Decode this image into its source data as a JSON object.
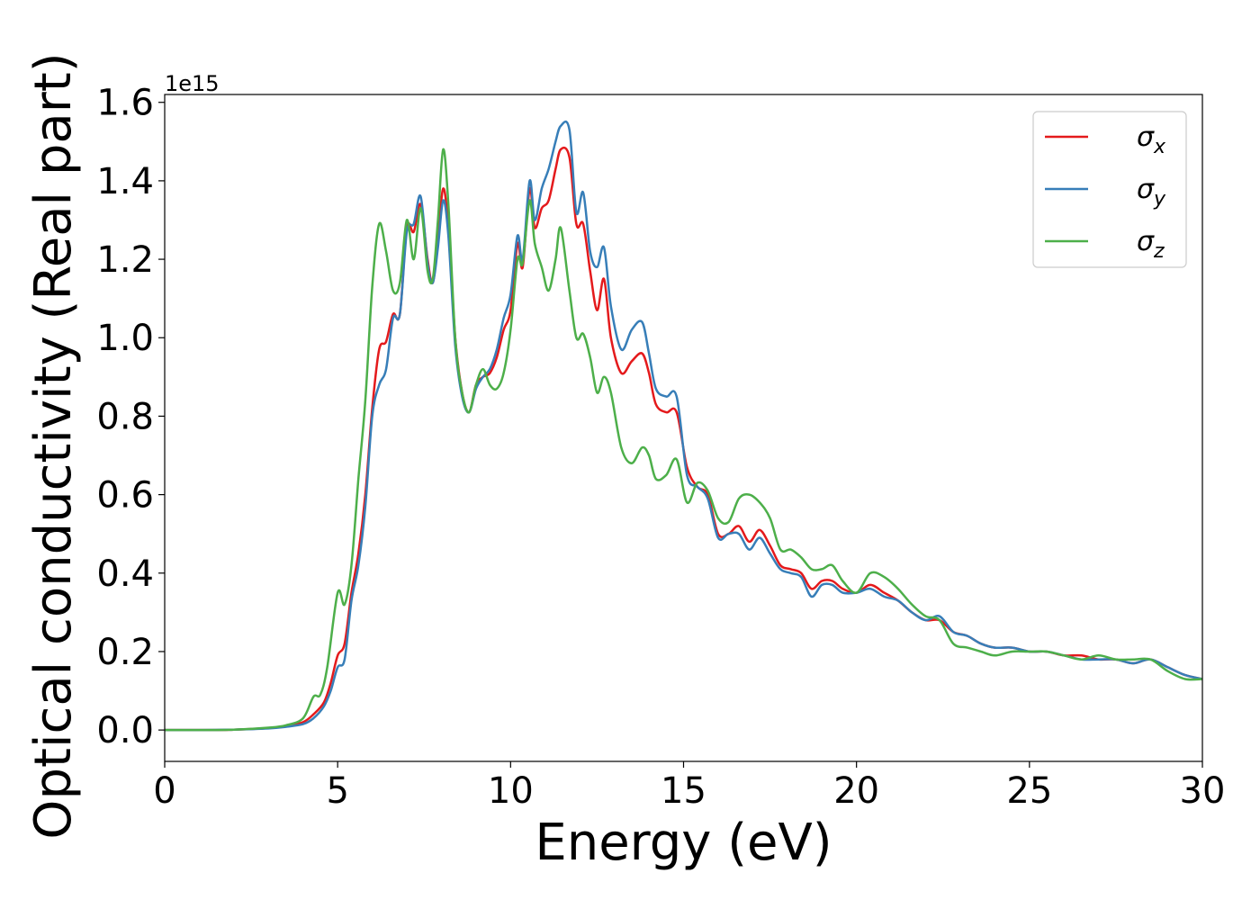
{
  "chart_data": {
    "type": "line",
    "xlabel": "Energy (eV)",
    "ylabel": "Optical conductivity (Real part)",
    "y_offset_label": "1e15",
    "xlim": [
      0,
      30
    ],
    "ylim": [
      -0.08,
      1.62
    ],
    "x_ticks": [
      0,
      5,
      10,
      15,
      20,
      25,
      30
    ],
    "x_tick_labels": [
      "0",
      "5",
      "10",
      "15",
      "20",
      "25",
      "30"
    ],
    "y_ticks": [
      0.0,
      0.2,
      0.4,
      0.6,
      0.8,
      1.0,
      1.2,
      1.4,
      1.6
    ],
    "y_tick_labels": [
      "0.0",
      "0.2",
      "0.4",
      "0.6",
      "0.8",
      "1.0",
      "1.2",
      "1.4",
      "1.6"
    ],
    "grid": false,
    "legend_position": "top-right",
    "series": [
      {
        "name": "σx",
        "label_base": "σ",
        "label_sub": "x",
        "color": "#e41a1c",
        "points": [
          [
            0,
            0.0
          ],
          [
            1,
            0.0
          ],
          [
            2,
            0.001
          ],
          [
            3,
            0.005
          ],
          [
            3.5,
            0.01
          ],
          [
            4,
            0.02
          ],
          [
            4.3,
            0.04
          ],
          [
            4.6,
            0.07
          ],
          [
            4.8,
            0.12
          ],
          [
            5,
            0.19
          ],
          [
            5.2,
            0.22
          ],
          [
            5.4,
            0.35
          ],
          [
            5.6,
            0.45
          ],
          [
            5.8,
            0.6
          ],
          [
            6,
            0.82
          ],
          [
            6.2,
            0.97
          ],
          [
            6.4,
            0.99
          ],
          [
            6.6,
            1.06
          ],
          [
            6.8,
            1.06
          ],
          [
            7.0,
            1.28
          ],
          [
            7.2,
            1.27
          ],
          [
            7.4,
            1.34
          ],
          [
            7.6,
            1.2
          ],
          [
            7.75,
            1.14
          ],
          [
            7.9,
            1.25
          ],
          [
            8.05,
            1.38
          ],
          [
            8.2,
            1.28
          ],
          [
            8.4,
            1.0
          ],
          [
            8.6,
            0.86
          ],
          [
            8.8,
            0.81
          ],
          [
            9.0,
            0.88
          ],
          [
            9.2,
            0.9
          ],
          [
            9.4,
            0.91
          ],
          [
            9.6,
            0.95
          ],
          [
            9.8,
            1.02
          ],
          [
            10.0,
            1.07
          ],
          [
            10.2,
            1.24
          ],
          [
            10.35,
            1.18
          ],
          [
            10.55,
            1.38
          ],
          [
            10.7,
            1.28
          ],
          [
            10.9,
            1.33
          ],
          [
            11.1,
            1.35
          ],
          [
            11.3,
            1.43
          ],
          [
            11.45,
            1.48
          ],
          [
            11.7,
            1.46
          ],
          [
            11.9,
            1.29
          ],
          [
            12.1,
            1.29
          ],
          [
            12.3,
            1.17
          ],
          [
            12.5,
            1.07
          ],
          [
            12.7,
            1.15
          ],
          [
            12.9,
            1.0
          ],
          [
            13.2,
            0.91
          ],
          [
            13.5,
            0.94
          ],
          [
            13.8,
            0.96
          ],
          [
            14.0,
            0.91
          ],
          [
            14.2,
            0.83
          ],
          [
            14.5,
            0.81
          ],
          [
            14.8,
            0.81
          ],
          [
            15.1,
            0.67
          ],
          [
            15.4,
            0.62
          ],
          [
            15.7,
            0.6
          ],
          [
            16.0,
            0.5
          ],
          [
            16.3,
            0.5
          ],
          [
            16.6,
            0.52
          ],
          [
            16.9,
            0.48
          ],
          [
            17.2,
            0.51
          ],
          [
            17.5,
            0.47
          ],
          [
            17.8,
            0.42
          ],
          [
            18.1,
            0.41
          ],
          [
            18.4,
            0.4
          ],
          [
            18.7,
            0.36
          ],
          [
            19.0,
            0.38
          ],
          [
            19.3,
            0.38
          ],
          [
            19.6,
            0.36
          ],
          [
            20.0,
            0.35
          ],
          [
            20.4,
            0.37
          ],
          [
            20.8,
            0.35
          ],
          [
            21.2,
            0.33
          ],
          [
            21.6,
            0.3
          ],
          [
            22.0,
            0.28
          ],
          [
            22.4,
            0.28
          ],
          [
            22.8,
            0.25
          ],
          [
            23.2,
            0.24
          ],
          [
            23.6,
            0.22
          ],
          [
            24.0,
            0.21
          ],
          [
            24.5,
            0.21
          ],
          [
            25.0,
            0.2
          ],
          [
            25.5,
            0.2
          ],
          [
            26.0,
            0.19
          ],
          [
            26.5,
            0.19
          ],
          [
            27.0,
            0.18
          ],
          [
            27.5,
            0.18
          ],
          [
            28.0,
            0.17
          ],
          [
            28.5,
            0.18
          ],
          [
            29.0,
            0.16
          ],
          [
            29.5,
            0.14
          ],
          [
            30.0,
            0.13
          ]
        ]
      },
      {
        "name": "σy",
        "label_base": "σ",
        "label_sub": "y",
        "color": "#377eb8",
        "points": [
          [
            0,
            0.0
          ],
          [
            1,
            0.0
          ],
          [
            2,
            0.001
          ],
          [
            3,
            0.004
          ],
          [
            3.5,
            0.008
          ],
          [
            4,
            0.015
          ],
          [
            4.3,
            0.03
          ],
          [
            4.6,
            0.06
          ],
          [
            4.8,
            0.1
          ],
          [
            5,
            0.16
          ],
          [
            5.2,
            0.18
          ],
          [
            5.4,
            0.33
          ],
          [
            5.6,
            0.42
          ],
          [
            5.8,
            0.57
          ],
          [
            6,
            0.8
          ],
          [
            6.2,
            0.88
          ],
          [
            6.4,
            0.92
          ],
          [
            6.6,
            1.05
          ],
          [
            6.8,
            1.06
          ],
          [
            7.0,
            1.27
          ],
          [
            7.2,
            1.29
          ],
          [
            7.4,
            1.36
          ],
          [
            7.6,
            1.19
          ],
          [
            7.75,
            1.14
          ],
          [
            7.9,
            1.23
          ],
          [
            8.05,
            1.35
          ],
          [
            8.2,
            1.26
          ],
          [
            8.4,
            0.98
          ],
          [
            8.6,
            0.85
          ],
          [
            8.8,
            0.81
          ],
          [
            9.0,
            0.87
          ],
          [
            9.2,
            0.9
          ],
          [
            9.4,
            0.92
          ],
          [
            9.6,
            0.97
          ],
          [
            9.8,
            1.05
          ],
          [
            10.0,
            1.11
          ],
          [
            10.2,
            1.26
          ],
          [
            10.35,
            1.2
          ],
          [
            10.55,
            1.4
          ],
          [
            10.7,
            1.3
          ],
          [
            10.9,
            1.38
          ],
          [
            11.1,
            1.43
          ],
          [
            11.3,
            1.5
          ],
          [
            11.45,
            1.54
          ],
          [
            11.7,
            1.53
          ],
          [
            11.9,
            1.32
          ],
          [
            12.1,
            1.37
          ],
          [
            12.3,
            1.22
          ],
          [
            12.5,
            1.18
          ],
          [
            12.7,
            1.23
          ],
          [
            12.9,
            1.08
          ],
          [
            13.2,
            0.97
          ],
          [
            13.5,
            1.02
          ],
          [
            13.8,
            1.04
          ],
          [
            14.0,
            0.96
          ],
          [
            14.2,
            0.87
          ],
          [
            14.5,
            0.85
          ],
          [
            14.8,
            0.85
          ],
          [
            15.1,
            0.65
          ],
          [
            15.4,
            0.62
          ],
          [
            15.7,
            0.59
          ],
          [
            16.0,
            0.49
          ],
          [
            16.3,
            0.5
          ],
          [
            16.6,
            0.5
          ],
          [
            16.9,
            0.46
          ],
          [
            17.2,
            0.49
          ],
          [
            17.5,
            0.45
          ],
          [
            17.8,
            0.41
          ],
          [
            18.1,
            0.4
          ],
          [
            18.4,
            0.39
          ],
          [
            18.7,
            0.34
          ],
          [
            19.0,
            0.37
          ],
          [
            19.3,
            0.37
          ],
          [
            19.6,
            0.35
          ],
          [
            20.0,
            0.35
          ],
          [
            20.4,
            0.36
          ],
          [
            20.8,
            0.34
          ],
          [
            21.2,
            0.33
          ],
          [
            21.6,
            0.3
          ],
          [
            22.0,
            0.28
          ],
          [
            22.4,
            0.29
          ],
          [
            22.8,
            0.25
          ],
          [
            23.2,
            0.24
          ],
          [
            23.6,
            0.22
          ],
          [
            24.0,
            0.21
          ],
          [
            24.5,
            0.21
          ],
          [
            25.0,
            0.2
          ],
          [
            25.5,
            0.2
          ],
          [
            26.0,
            0.19
          ],
          [
            26.5,
            0.18
          ],
          [
            27.0,
            0.18
          ],
          [
            27.5,
            0.18
          ],
          [
            28.0,
            0.17
          ],
          [
            28.5,
            0.18
          ],
          [
            29.0,
            0.16
          ],
          [
            29.5,
            0.14
          ],
          [
            30.0,
            0.13
          ]
        ]
      },
      {
        "name": "σz",
        "label_base": "σ",
        "label_sub": "z",
        "color": "#4daf4a",
        "points": [
          [
            0,
            0.0
          ],
          [
            1,
            0.0
          ],
          [
            2,
            0.001
          ],
          [
            3,
            0.006
          ],
          [
            3.5,
            0.012
          ],
          [
            4,
            0.03
          ],
          [
            4.3,
            0.085
          ],
          [
            4.5,
            0.09
          ],
          [
            4.7,
            0.16
          ],
          [
            5,
            0.35
          ],
          [
            5.2,
            0.32
          ],
          [
            5.4,
            0.42
          ],
          [
            5.6,
            0.64
          ],
          [
            5.8,
            0.84
          ],
          [
            6.0,
            1.13
          ],
          [
            6.2,
            1.29
          ],
          [
            6.4,
            1.22
          ],
          [
            6.6,
            1.12
          ],
          [
            6.8,
            1.14
          ],
          [
            7.0,
            1.3
          ],
          [
            7.2,
            1.2
          ],
          [
            7.4,
            1.33
          ],
          [
            7.6,
            1.17
          ],
          [
            7.75,
            1.15
          ],
          [
            7.9,
            1.3
          ],
          [
            8.05,
            1.48
          ],
          [
            8.2,
            1.34
          ],
          [
            8.4,
            1.0
          ],
          [
            8.6,
            0.86
          ],
          [
            8.8,
            0.81
          ],
          [
            9.0,
            0.88
          ],
          [
            9.2,
            0.92
          ],
          [
            9.4,
            0.88
          ],
          [
            9.6,
            0.87
          ],
          [
            9.8,
            0.91
          ],
          [
            10.0,
            1.02
          ],
          [
            10.2,
            1.2
          ],
          [
            10.35,
            1.19
          ],
          [
            10.55,
            1.35
          ],
          [
            10.7,
            1.24
          ],
          [
            10.9,
            1.18
          ],
          [
            11.1,
            1.12
          ],
          [
            11.3,
            1.2
          ],
          [
            11.45,
            1.28
          ],
          [
            11.7,
            1.12
          ],
          [
            11.9,
            1.0
          ],
          [
            12.1,
            1.01
          ],
          [
            12.3,
            0.95
          ],
          [
            12.5,
            0.86
          ],
          [
            12.7,
            0.9
          ],
          [
            12.9,
            0.86
          ],
          [
            13.2,
            0.72
          ],
          [
            13.5,
            0.68
          ],
          [
            13.8,
            0.72
          ],
          [
            14.0,
            0.7
          ],
          [
            14.2,
            0.64
          ],
          [
            14.5,
            0.65
          ],
          [
            14.8,
            0.69
          ],
          [
            15.1,
            0.58
          ],
          [
            15.4,
            0.63
          ],
          [
            15.7,
            0.61
          ],
          [
            16.0,
            0.54
          ],
          [
            16.3,
            0.53
          ],
          [
            16.6,
            0.59
          ],
          [
            16.9,
            0.6
          ],
          [
            17.2,
            0.58
          ],
          [
            17.5,
            0.54
          ],
          [
            17.8,
            0.46
          ],
          [
            18.1,
            0.46
          ],
          [
            18.4,
            0.44
          ],
          [
            18.7,
            0.41
          ],
          [
            19.0,
            0.41
          ],
          [
            19.3,
            0.42
          ],
          [
            19.6,
            0.38
          ],
          [
            20.0,
            0.35
          ],
          [
            20.4,
            0.4
          ],
          [
            20.8,
            0.39
          ],
          [
            21.2,
            0.36
          ],
          [
            21.6,
            0.32
          ],
          [
            22.0,
            0.29
          ],
          [
            22.4,
            0.28
          ],
          [
            22.8,
            0.22
          ],
          [
            23.2,
            0.21
          ],
          [
            23.6,
            0.2
          ],
          [
            24.0,
            0.19
          ],
          [
            24.5,
            0.2
          ],
          [
            25.0,
            0.2
          ],
          [
            25.5,
            0.2
          ],
          [
            26.0,
            0.19
          ],
          [
            26.5,
            0.18
          ],
          [
            27.0,
            0.19
          ],
          [
            27.5,
            0.18
          ],
          [
            28.0,
            0.18
          ],
          [
            28.5,
            0.18
          ],
          [
            29.0,
            0.15
          ],
          [
            29.5,
            0.13
          ],
          [
            30.0,
            0.13
          ]
        ]
      }
    ]
  }
}
